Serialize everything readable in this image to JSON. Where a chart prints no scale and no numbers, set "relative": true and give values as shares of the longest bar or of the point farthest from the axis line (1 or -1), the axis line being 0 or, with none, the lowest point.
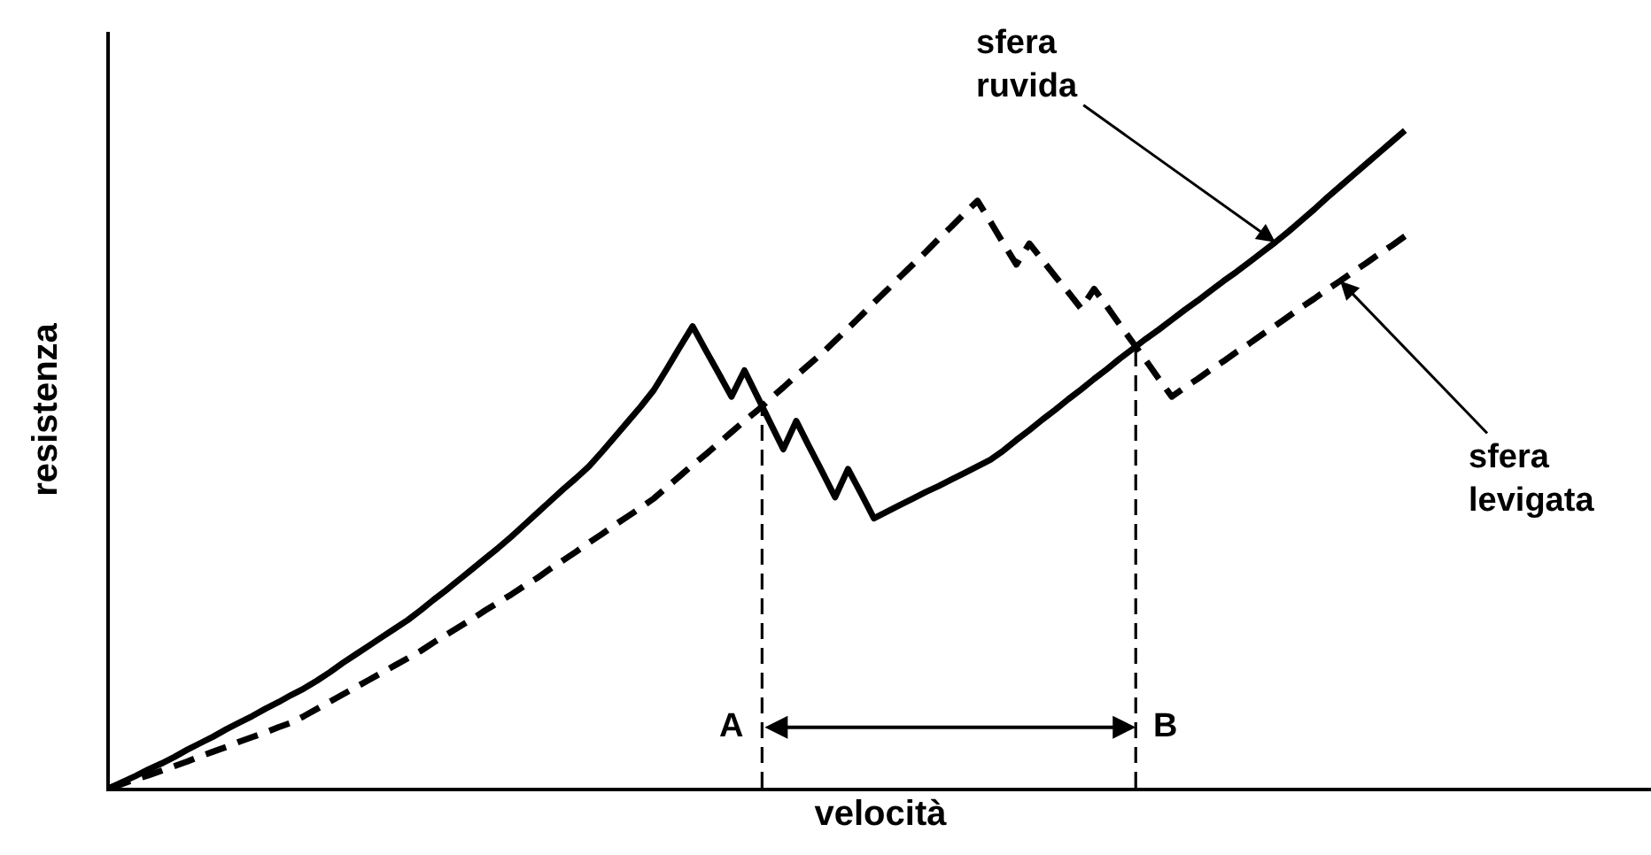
{
  "chart_data": {
    "type": "line",
    "relative": true,
    "xlabel": "velocità",
    "ylabel": "resistenza",
    "tick_labels": false,
    "categories": [
      null,
      null,
      null,
      null,
      null,
      null,
      null,
      null,
      null,
      null,
      null,
      null,
      null,
      null,
      null,
      null,
      null,
      null,
      null,
      null,
      null,
      null,
      null,
      null,
      null,
      null,
      null,
      null,
      null,
      null,
      null,
      null,
      null,
      null,
      null,
      null,
      null,
      null,
      null,
      null,
      null,
      null,
      null,
      null,
      null,
      null,
      null,
      null,
      null,
      null,
      null,
      null,
      null,
      null,
      null,
      null,
      null,
      null,
      null,
      null,
      null,
      null,
      null,
      null,
      null,
      null,
      null,
      null,
      null,
      null,
      null,
      null,
      null,
      null,
      null,
      null,
      null,
      null,
      null,
      null,
      null,
      null,
      null,
      null,
      null,
      null,
      null,
      null,
      null,
      null,
      null,
      null,
      null,
      null,
      null,
      null,
      null,
      null,
      null,
      null,
      null
    ],
    "series": [
      {
        "name": "sfera ruvida",
        "color": "#000000",
        "line_style": "solid",
        "values": [
          0,
          0.009,
          0.018,
          0.028,
          0.037,
          0.047,
          0.058,
          0.068,
          0.078,
          0.089,
          0.099,
          0.109,
          0.12,
          0.13,
          0.141,
          0.151,
          0.163,
          0.176,
          0.19,
          0.203,
          0.216,
          0.229,
          0.242,
          0.255,
          0.27,
          0.286,
          0.301,
          0.317,
          0.333,
          0.349,
          0.365,
          0.382,
          0.4,
          0.418,
          0.436,
          0.454,
          0.471,
          0.489,
          0.511,
          0.534,
          0.557,
          0.58,
          0.605,
          0.637,
          0.67,
          0.702,
          0.666,
          0.631,
          0.595,
          0.635,
          0.595,
          0.555,
          0.515,
          0.558,
          0.519,
          0.481,
          0.442,
          0.485,
          0.448,
          0.41,
          0.42,
          0.43,
          0.44,
          0.45,
          0.459,
          0.469,
          0.479,
          0.489,
          0.499,
          0.513,
          0.529,
          0.544,
          0.56,
          0.575,
          0.591,
          0.606,
          0.622,
          0.637,
          0.653,
          0.668,
          0.683,
          0.697,
          0.712,
          0.727,
          0.741,
          0.756,
          0.771,
          0.785,
          0.8,
          0.815,
          0.83,
          0.846,
          0.863,
          0.88,
          0.898,
          0.915,
          0.932,
          0.949,
          0.966,
          0.983,
          1.0
        ]
      },
      {
        "name": "sfera levigata",
        "color": "#000000",
        "line_style": "dashed",
        "values": [
          0,
          0.006,
          0.013,
          0.019,
          0.026,
          0.033,
          0.04,
          0.048,
          0.055,
          0.062,
          0.07,
          0.077,
          0.084,
          0.092,
          0.099,
          0.109,
          0.12,
          0.131,
          0.142,
          0.153,
          0.164,
          0.175,
          0.186,
          0.197,
          0.208,
          0.221,
          0.233,
          0.245,
          0.257,
          0.27,
          0.282,
          0.294,
          0.307,
          0.319,
          0.333,
          0.346,
          0.359,
          0.373,
          0.386,
          0.4,
          0.413,
          0.426,
          0.44,
          0.457,
          0.474,
          0.491,
          0.507,
          0.524,
          0.541,
          0.558,
          0.574,
          0.592,
          0.609,
          0.627,
          0.644,
          0.661,
          0.68,
          0.699,
          0.718,
          0.738,
          0.757,
          0.777,
          0.796,
          0.815,
          0.835,
          0.854,
          0.874,
          0.893,
          0.861,
          0.828,
          0.796,
          0.828,
          0.803,
          0.778,
          0.754,
          0.729,
          0.759,
          0.732,
          0.704,
          0.677,
          0.65,
          0.622,
          0.595,
          0.609,
          0.622,
          0.636,
          0.649,
          0.663,
          0.676,
          0.69,
          0.703,
          0.717,
          0.731,
          0.744,
          0.758,
          0.771,
          0.785,
          0.798,
          0.812,
          0.825,
          0.839
        ]
      }
    ],
    "annotations": [
      "A",
      "B"
    ]
  }
}
